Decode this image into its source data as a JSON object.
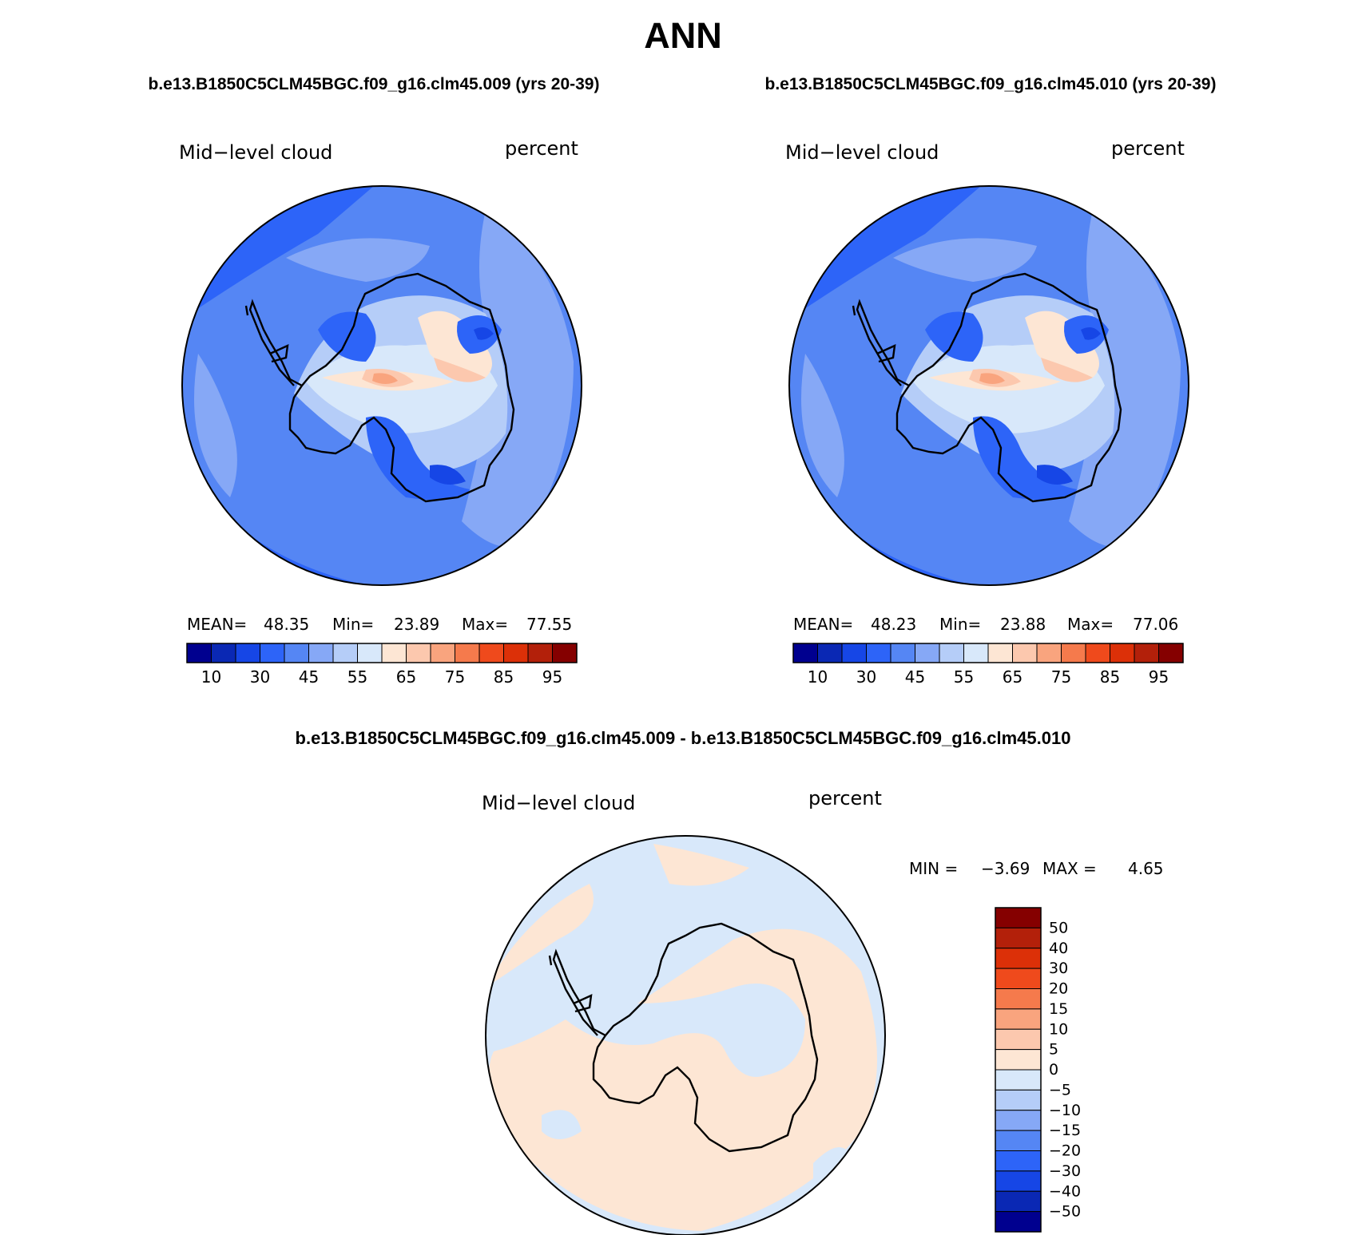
{
  "page": {
    "title": "ANN",
    "case_a": "b.e13.B1850C5CLM45BGC.f09_g16.clm45.009 (yrs 20-39)",
    "case_b": "b.e13.B1850C5CLM45BGC.f09_g16.clm45.010 (yrs 20-39)",
    "diff_title": "b.e13.B1850C5CLM45BGC.f09_g16.clm45.009 - b.e13.B1850C5CLM45BGC.f09_g16.clm45.010"
  },
  "panels": [
    {
      "variable": "Mid−level cloud",
      "units": "percent",
      "stats": {
        "mean_label": "MEAN=",
        "mean": "48.35",
        "min_label": "Min=",
        "min": "23.89",
        "max_label": "Max=",
        "max": "77.55"
      }
    },
    {
      "variable": "Mid−level cloud",
      "units": "percent",
      "stats": {
        "mean_label": "MEAN=",
        "mean": "48.23",
        "min_label": "Min=",
        "min": "23.88",
        "max_label": "Max=",
        "max": "77.06"
      }
    }
  ],
  "diff_panel": {
    "variable": "Mid−level cloud",
    "units": "percent",
    "min_label": "MIN =",
    "min": "−3.69",
    "max_label": "MAX =",
    "max": "4.65"
  },
  "abs_colorbar": {
    "colors": [
      "#00008f",
      "#0a28b4",
      "#1646e6",
      "#2d64f8",
      "#5586f4",
      "#86a8f6",
      "#b5cdf8",
      "#d8e8fa",
      "#fde6d4",
      "#fcc8ae",
      "#f9a47e",
      "#f57a4c",
      "#ef4a1c",
      "#dc3008",
      "#b3200a",
      "#850000"
    ],
    "tick_labels": [
      "10",
      "30",
      "45",
      "55",
      "65",
      "75",
      "85",
      "95"
    ]
  },
  "diff_colorbar": {
    "colors": [
      "#850000",
      "#b3200a",
      "#dc3008",
      "#ef4a1c",
      "#f57a4c",
      "#f9a47e",
      "#fcc8ae",
      "#fde6d4",
      "#d8e8fa",
      "#b5cdf8",
      "#86a8f6",
      "#5586f4",
      "#2d64f8",
      "#1646e6",
      "#0a28b4",
      "#00008f"
    ],
    "tick_labels": [
      "50",
      "40",
      "30",
      "20",
      "15",
      "10",
      "5",
      "0",
      "−5",
      "−10",
      "−15",
      "−20",
      "−30",
      "−40",
      "−50"
    ]
  }
}
